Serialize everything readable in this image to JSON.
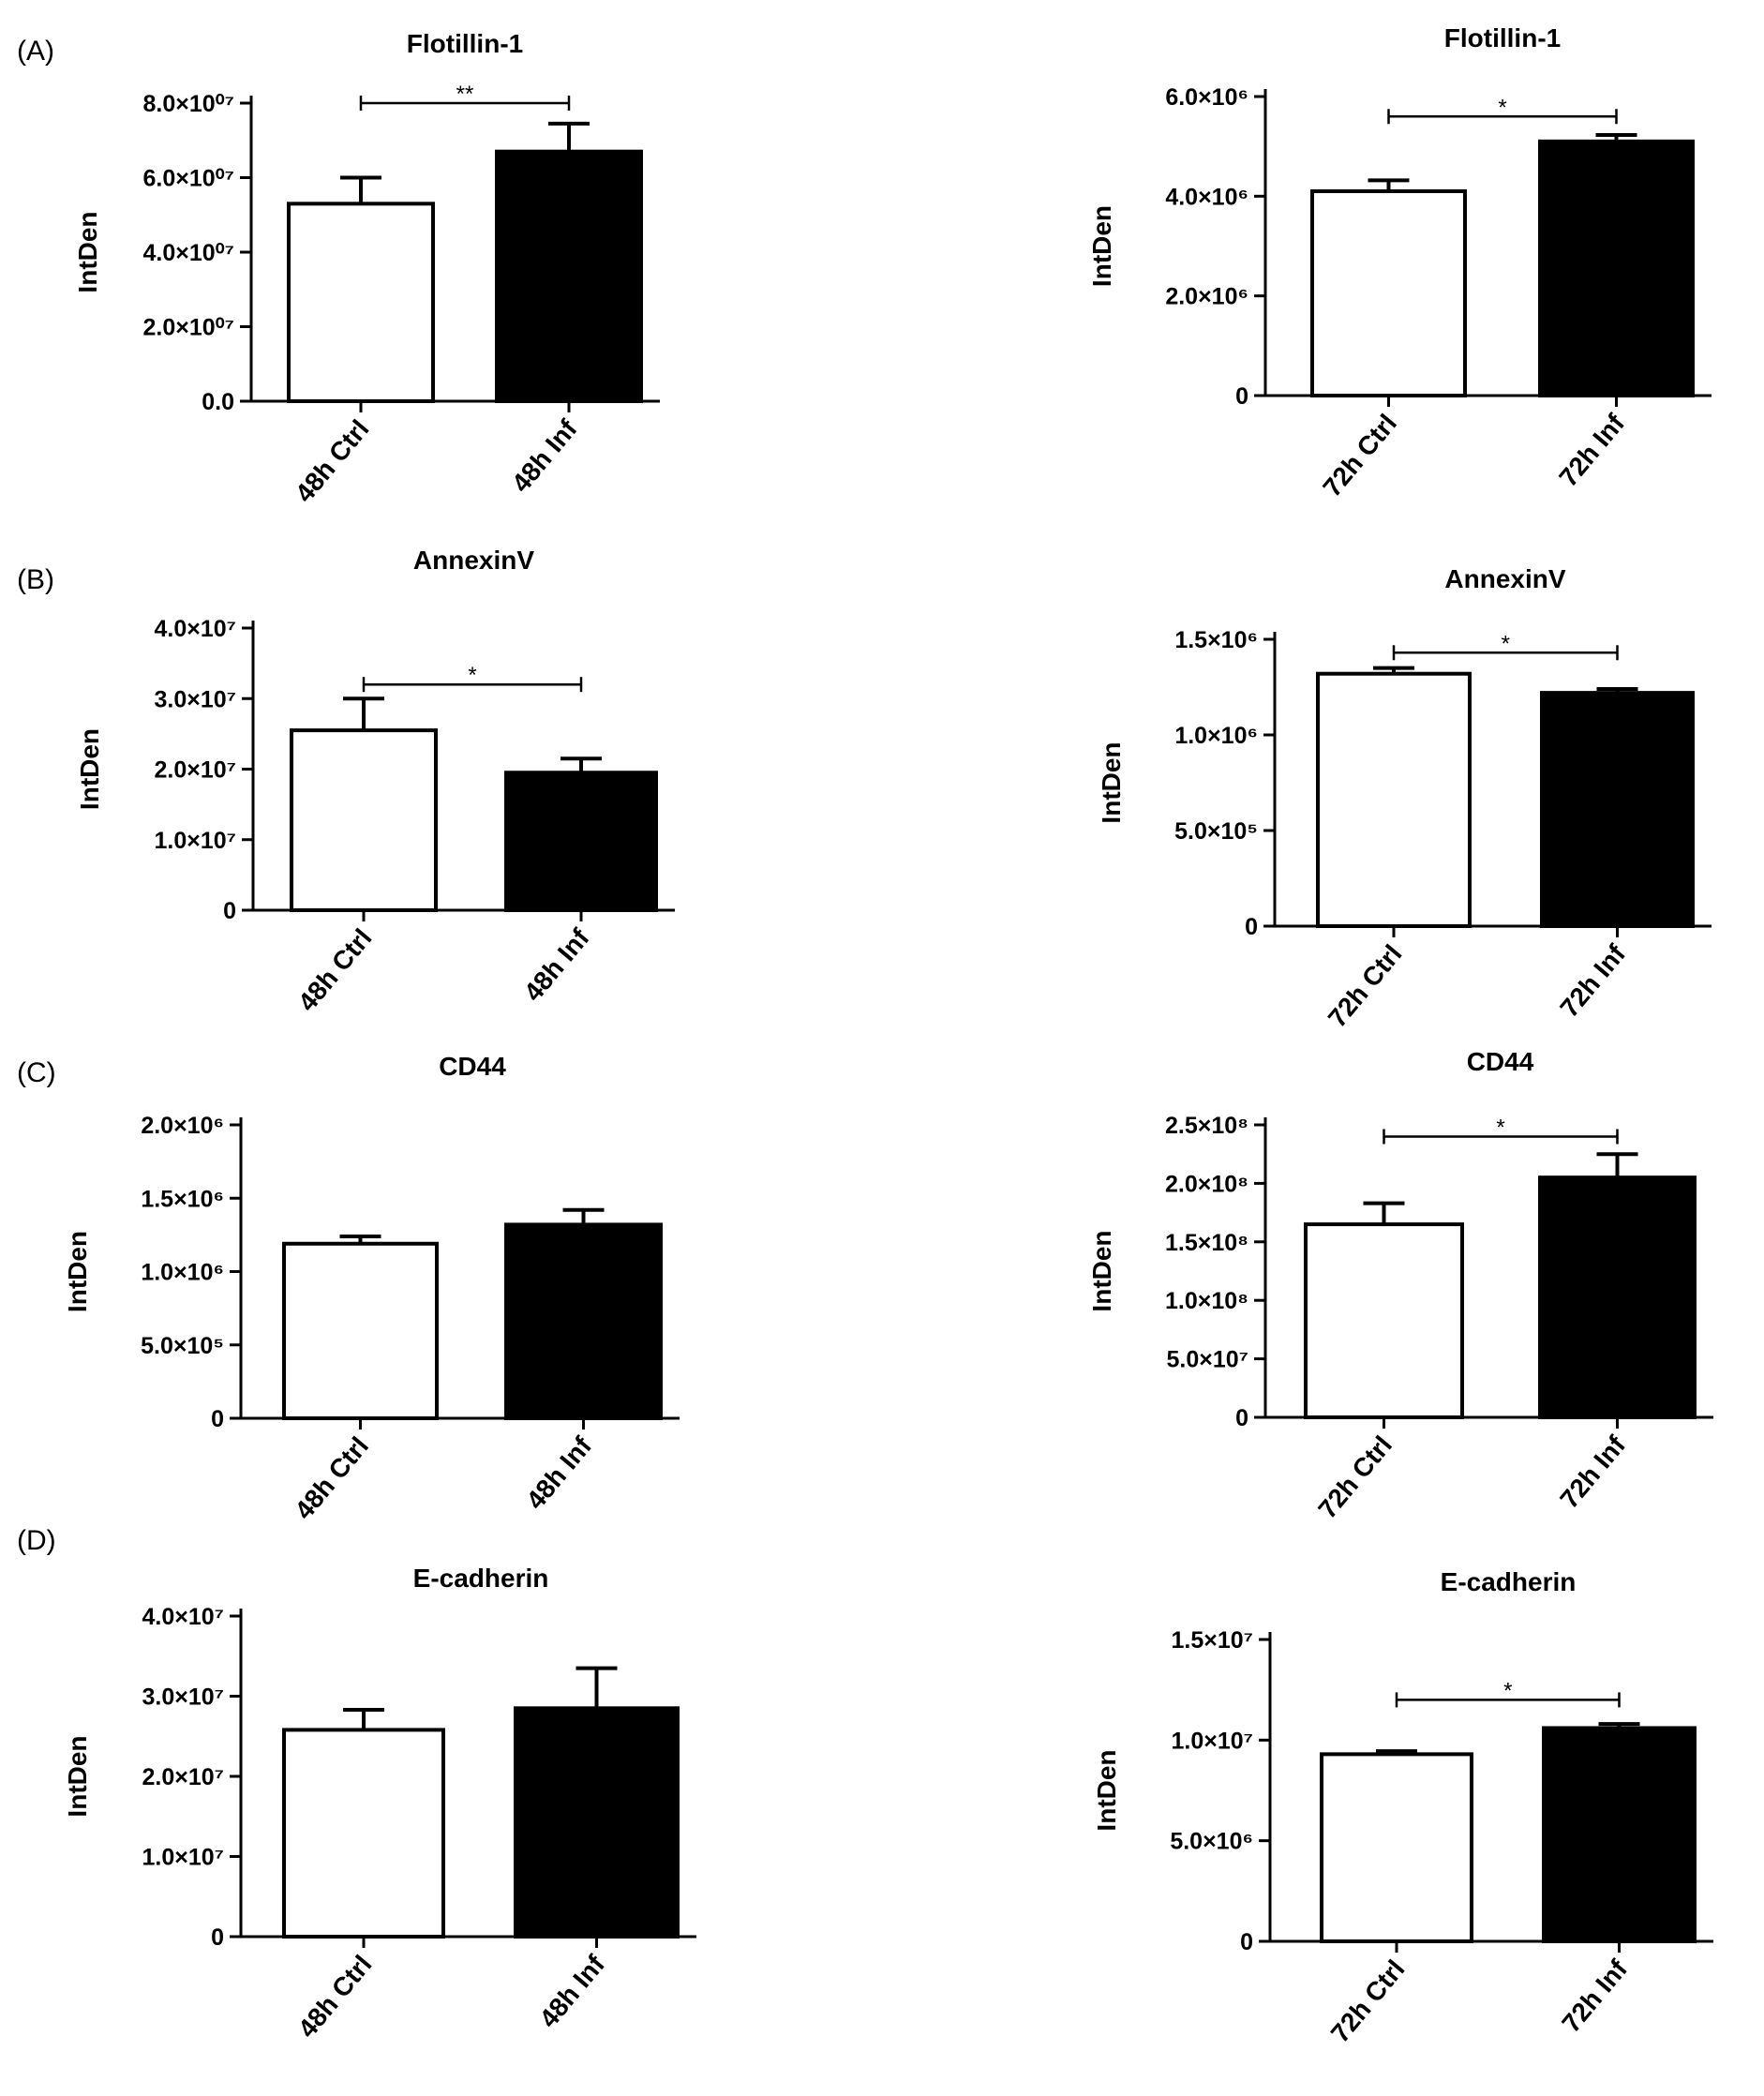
{
  "panels": [
    {
      "label": "(A)"
    },
    {
      "label": "(B)"
    },
    {
      "label": "(C)"
    },
    {
      "label": "(D)"
    }
  ],
  "chart_data": [
    {
      "type": "bar",
      "panel": "(A)",
      "title": "Flotillin-1",
      "ylabel": "IntDen",
      "categories": [
        "48h Ctrl",
        "48h Inf"
      ],
      "values": [
        53000000,
        67000000
      ],
      "errors": [
        7000000,
        7500000
      ],
      "ylim": [
        0,
        80000000
      ],
      "yticks": [
        0,
        20000000,
        40000000,
        60000000,
        80000000
      ],
      "ytick_labels": [
        "0.0",
        "2.0×10⁰⁷",
        "4.0×10⁰⁷",
        "6.0×10⁰⁷",
        "8.0×10⁰⁷"
      ],
      "bar_colors": [
        "#ffffff",
        "#000000"
      ],
      "significance": {
        "from": 0,
        "to": 1,
        "label": "**",
        "y": 80000000
      }
    },
    {
      "type": "bar",
      "panel": "(A)",
      "title": "Flotillin-1",
      "ylabel": "IntDen",
      "categories": [
        "72h Ctrl",
        "72h Inf"
      ],
      "values": [
        4100000,
        5100000
      ],
      "errors": [
        220000,
        130000
      ],
      "ylim": [
        0,
        6000000
      ],
      "yticks": [
        0,
        2000000,
        4000000,
        6000000
      ],
      "ytick_labels": [
        "0",
        "2.0×10⁶",
        "4.0×10⁶",
        "6.0×10⁶"
      ],
      "bar_colors": [
        "#ffffff",
        "#000000"
      ],
      "significance": {
        "from": 0,
        "to": 1,
        "label": "*",
        "y": 5600000
      }
    },
    {
      "type": "bar",
      "panel": "(B)",
      "title": "AnnexinV",
      "ylabel": "IntDen",
      "categories": [
        "48h Ctrl",
        "48h Inf"
      ],
      "values": [
        25500000,
        19500000
      ],
      "errors": [
        4500000,
        2000000
      ],
      "ylim": [
        0,
        40000000
      ],
      "yticks": [
        0,
        10000000,
        20000000,
        30000000,
        40000000
      ],
      "ytick_labels": [
        "0",
        "1.0×10⁷",
        "2.0×10⁷",
        "3.0×10⁷",
        "4.0×10⁷"
      ],
      "bar_colors": [
        "#ffffff",
        "#000000"
      ],
      "significance": {
        "from": 0,
        "to": 1,
        "label": "*",
        "y": 32000000
      }
    },
    {
      "type": "bar",
      "panel": "(B)",
      "title": "AnnexinV",
      "ylabel": "IntDen",
      "categories": [
        "72h Ctrl",
        "72h Inf"
      ],
      "values": [
        1320000,
        1220000
      ],
      "errors": [
        30000,
        20000
      ],
      "ylim": [
        0,
        1500000
      ],
      "yticks": [
        0,
        500000,
        1000000,
        1500000
      ],
      "ytick_labels": [
        "0",
        "5.0×10⁵",
        "1.0×10⁶",
        "1.5×10⁶"
      ],
      "bar_colors": [
        "#ffffff",
        "#000000"
      ],
      "significance": {
        "from": 0,
        "to": 1,
        "label": "*",
        "y": 1430000
      }
    },
    {
      "type": "bar",
      "panel": "(C)",
      "title": "CD44",
      "ylabel": "IntDen",
      "categories": [
        "48h Ctrl",
        "48h Inf"
      ],
      "values": [
        1190000,
        1320000
      ],
      "errors": [
        50000,
        100000
      ],
      "ylim": [
        0,
        2000000
      ],
      "yticks": [
        0,
        500000,
        1000000,
        1500000,
        2000000
      ],
      "ytick_labels": [
        "0",
        "5.0×10⁵",
        "1.0×10⁶",
        "1.5×10⁶",
        "2.0×10⁶"
      ],
      "bar_colors": [
        "#ffffff",
        "#000000"
      ]
    },
    {
      "type": "bar",
      "panel": "(C)",
      "title": "CD44",
      "ylabel": "IntDen",
      "categories": [
        "72h Ctrl",
        "72h Inf"
      ],
      "values": [
        165000000,
        205000000
      ],
      "errors": [
        18000000,
        20000000
      ],
      "ylim": [
        0,
        250000000
      ],
      "yticks": [
        0,
        50000000,
        100000000,
        150000000,
        200000000,
        250000000
      ],
      "ytick_labels": [
        "0",
        "5.0×10⁷",
        "1.0×10⁸",
        "1.5×10⁸",
        "2.0×10⁸",
        "2.5×10⁸"
      ],
      "bar_colors": [
        "#ffffff",
        "#000000"
      ],
      "significance": {
        "from": 0,
        "to": 1,
        "label": "*",
        "y": 240000000
      }
    },
    {
      "type": "bar",
      "panel": "(D)",
      "title": "E-cadherin",
      "ylabel": "IntDen",
      "categories": [
        "48h Ctrl",
        "48h Inf"
      ],
      "values": [
        25800000,
        28500000
      ],
      "errors": [
        2500000,
        5000000
      ],
      "ylim": [
        0,
        40000000
      ],
      "yticks": [
        0,
        10000000,
        20000000,
        30000000,
        40000000
      ],
      "ytick_labels": [
        "0",
        "1.0×10⁷",
        "2.0×10⁷",
        "3.0×10⁷",
        "4.0×10⁷"
      ],
      "bar_colors": [
        "#ffffff",
        "#000000"
      ]
    },
    {
      "type": "bar",
      "panel": "(D)",
      "title": "E-cadherin",
      "ylabel": "IntDen",
      "categories": [
        "72h Ctrl",
        "72h Inf"
      ],
      "values": [
        9300000,
        10600000
      ],
      "errors": [
        150000,
        200000
      ],
      "ylim": [
        0,
        15000000
      ],
      "yticks": [
        0,
        5000000,
        10000000,
        15000000
      ],
      "ytick_labels": [
        "0",
        "5.0×10⁶",
        "1.0×10⁷",
        "1.5×10⁷"
      ],
      "bar_colors": [
        "#ffffff",
        "#000000"
      ],
      "significance": {
        "from": 0,
        "to": 1,
        "label": "*",
        "y": 12000000
      }
    }
  ]
}
